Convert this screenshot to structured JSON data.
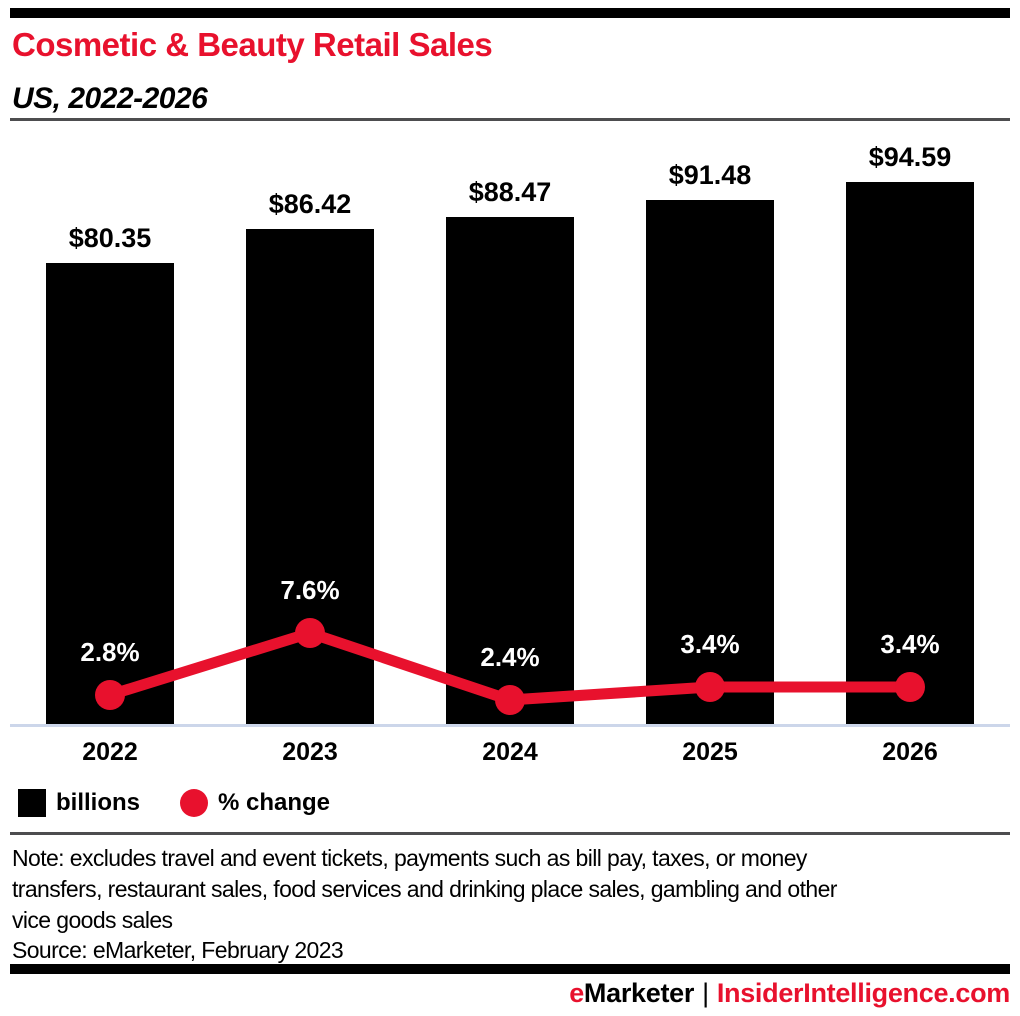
{
  "header": {
    "title": "Cosmetic & Beauty Retail Sales",
    "subtitle": "US, 2022-2026"
  },
  "chart_data": {
    "type": "bar",
    "categories": [
      "2022",
      "2023",
      "2024",
      "2025",
      "2026"
    ],
    "series": [
      {
        "name": "billions",
        "type": "bar",
        "values": [
          80.35,
          86.42,
          88.47,
          91.48,
          94.59
        ],
        "labels": [
          "$80.35",
          "$86.42",
          "$88.47",
          "$91.48",
          "$94.59"
        ],
        "color": "#000000"
      },
      {
        "name": "% change",
        "type": "line",
        "values": [
          2.8,
          7.6,
          2.4,
          3.4,
          3.4
        ],
        "labels": [
          "2.8%",
          "7.6%",
          "2.4%",
          "3.4%",
          "3.4%"
        ],
        "color": "#e8112d"
      }
    ],
    "title": "Cosmetic & Beauty Retail Sales",
    "subtitle": "US, 2022-2026",
    "xlabel": "",
    "ylabel": "",
    "ylim": [
      0,
      104
    ],
    "grid": false,
    "legend_position": "bottom"
  },
  "legend": {
    "items": [
      {
        "label": "billions",
        "color": "#000000",
        "shape": "square"
      },
      {
        "label": "% change",
        "color": "#e8112d",
        "shape": "circle"
      }
    ]
  },
  "note": {
    "lines": [
      "Note: excludes travel and event tickets, payments such as bill pay, taxes, or money",
      "transfers, restaurant sales, food services and drinking place sales, gambling and other",
      "vice goods sales"
    ]
  },
  "source": "Source: eMarketer, February 2023",
  "footer": {
    "brand_e": "e",
    "brand_rest": "Marketer",
    "separator": "|",
    "site": "InsiderIntelligence.com"
  },
  "colors": {
    "accent_red": "#e8112d",
    "bar_black": "#000000",
    "axis_line": "#ccd6ea",
    "divider_gray": "#4d4d4f"
  }
}
